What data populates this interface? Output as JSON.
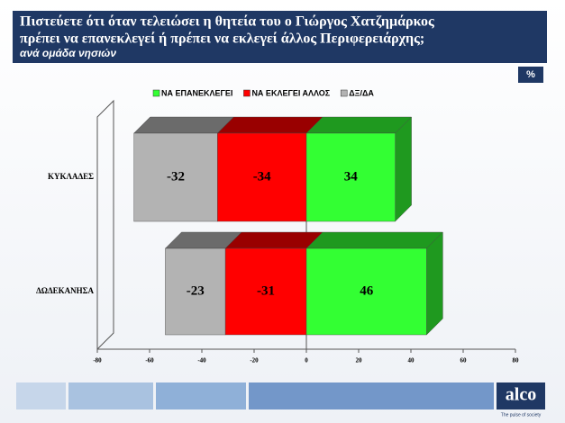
{
  "chart_data": {
    "type": "bar3d-diverging",
    "title": [
      "Πιστεύετε ότι όταν τελειώσει η θητεία του ο Γιώργος Χατζημάρκος",
      "πρέπει να επανεκλεγεί ή πρέπει να εκλεγεί άλλος Περιφερειάρχης;"
    ],
    "subtitle": "ανά ομάδα νησιών",
    "unit_badge": "%",
    "categories": [
      "ΚΥΚΛΑΔΕΣ",
      "ΔΩΔΕΚΑΝΗΣΑ"
    ],
    "series": [
      {
        "name": "ΝΑ ΕΠΑΝΕΚΛΕΓΕΙ",
        "color": "#33ff33",
        "values": [
          34,
          46
        ]
      },
      {
        "name": "ΝΑ ΕΚΛΕΓΕΙ ΑΛΛΟΣ",
        "color": "#ff0000",
        "values": [
          -34,
          -31
        ]
      },
      {
        "name": "ΔΞ/ΔΑ",
        "color": "#b3b3b3",
        "values": [
          -32,
          -23
        ]
      }
    ],
    "xlim": [
      -80,
      80
    ],
    "xticks": [
      -80,
      -60,
      -40,
      -20,
      0,
      20,
      40,
      60,
      80
    ],
    "logo": "alco",
    "tagline": "The pulse of society"
  }
}
